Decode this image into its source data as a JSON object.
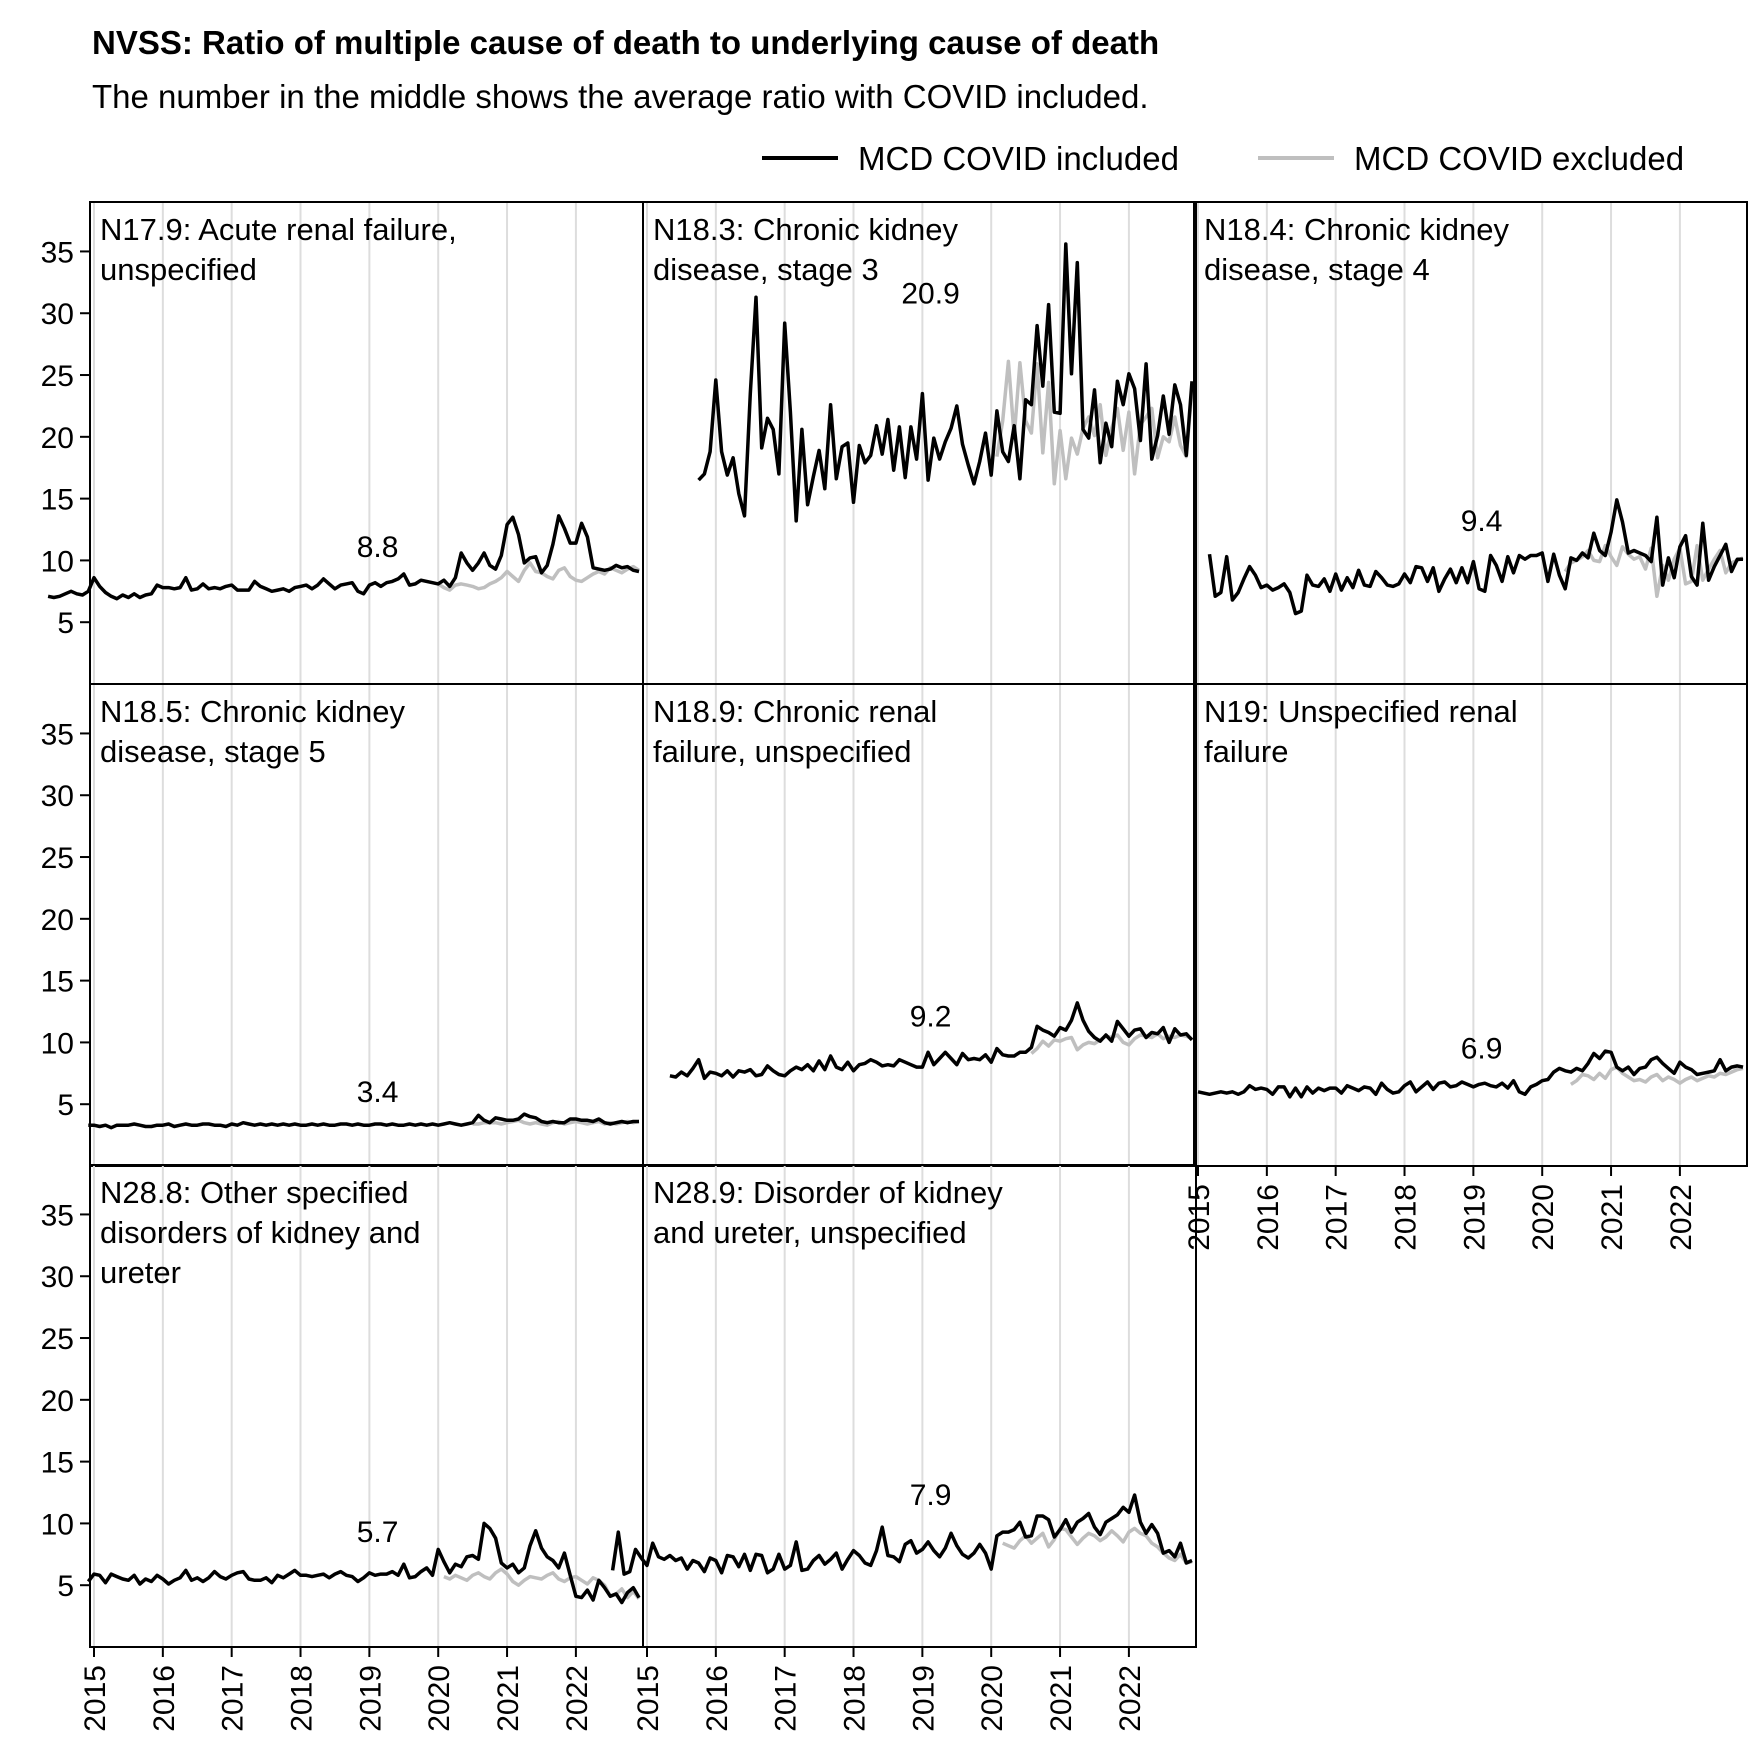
{
  "title": "NVSS: Ratio of multiple cause of death to underlying cause of death",
  "subtitle": "The number in the middle shows the average ratio with COVID included.",
  "colors": {
    "included": "#000000",
    "excluded": "#bfbfbf",
    "grid": "#dddddd",
    "frame": "#000000"
  },
  "chart_data": {
    "type": "line",
    "facets": "3x3 grid, shared axes; x axis monthly from 2015-01 to 2022-12",
    "legend": {
      "position": "top-right",
      "entries": [
        {
          "label": "MCD COVID included",
          "color": "#000000"
        },
        {
          "label": "MCD COVID excluded",
          "color": "#bfbfbf"
        }
      ]
    },
    "x_ticks": [
      "2015",
      "2016",
      "2017",
      "2018",
      "2019",
      "2020",
      "2021",
      "2022"
    ],
    "y_ticks": [
      5,
      10,
      15,
      20,
      25,
      30,
      35
    ],
    "ylim": [
      0,
      39
    ],
    "xlim": [
      "2015-01",
      "2022-12"
    ],
    "grid": "vertical lines at each year",
    "panels": [
      {
        "label": "N17.9: Acute renal failure, unspecified",
        "avg_label": "8.8",
        "included": [
          7.1,
          7.0,
          7.1,
          7.3,
          7.5,
          7.3,
          7.2,
          7.5,
          8.6,
          7.9,
          7.4,
          7.1,
          6.9,
          7.2,
          7.0,
          7.3,
          7.0,
          7.2,
          7.3,
          8.0,
          7.8,
          7.8,
          7.7,
          7.8,
          8.6,
          7.6,
          7.7,
          8.1,
          7.7,
          7.8,
          7.7,
          7.9,
          8.0,
          7.6,
          7.6,
          7.6,
          8.3,
          7.9,
          7.7,
          7.5,
          7.6,
          7.7,
          7.5,
          7.8,
          7.9,
          8.0,
          7.7,
          8.0,
          8.5,
          8.1,
          7.7,
          8.0,
          8.1,
          8.2,
          7.5,
          7.3,
          8.0,
          8.2,
          7.9,
          8.2,
          8.3,
          8.5,
          8.9,
          8.0,
          8.1,
          8.4,
          8.3,
          8.2,
          8.1,
          8.4,
          7.9,
          8.6,
          10.6,
          9.8,
          9.2,
          9.8,
          10.6,
          9.6,
          9.3,
          10.4,
          12.9,
          13.5,
          12.1,
          9.8,
          10.2,
          10.3,
          9.0,
          9.6,
          11.3,
          13.6,
          12.6,
          11.4,
          11.4,
          13.0,
          11.9,
          9.4,
          9.3,
          9.2,
          9.3,
          9.6,
          9.4,
          9.5,
          9.2,
          9.1
        ],
        "excluded": [
          8.1,
          7.8,
          7.6,
          8.0,
          8.1,
          8.0,
          7.9,
          7.7,
          7.8,
          8.1,
          8.3,
          8.6,
          9.1,
          8.7,
          8.3,
          9.2,
          9.8,
          9.1,
          9.0,
          8.7,
          8.5,
          9.2,
          9.4,
          8.7,
          8.4,
          8.3,
          8.6,
          8.9,
          9.1,
          8.9,
          9.4,
          9.2,
          9.0,
          9.3,
          9.5,
          9.2
        ]
      },
      {
        "label": "N18.3: Chronic kidney disease, stage 3",
        "avg_label": "20.9",
        "included": [
          16.5,
          17.0,
          18.8,
          24.6,
          18.8,
          16.9,
          18.3,
          15.4,
          13.6,
          23.5,
          31.3,
          19.1,
          21.5,
          20.6,
          17.0,
          29.2,
          22.0,
          13.2,
          20.6,
          14.5,
          16.8,
          18.9,
          15.8,
          22.6,
          16.6,
          19.2,
          19.5,
          14.7,
          19.3,
          17.9,
          18.5,
          20.9,
          18.6,
          21.4,
          17.3,
          20.8,
          16.7,
          20.8,
          18.2,
          23.5,
          16.5,
          19.9,
          18.2,
          19.6,
          20.7,
          22.5,
          19.4,
          17.7,
          16.2,
          18.0,
          20.3,
          16.9,
          22.1,
          18.8,
          18.0,
          20.9,
          16.6,
          23.0,
          22.6,
          29.0,
          24.1,
          30.7,
          22.0,
          21.9,
          35.6,
          25.1,
          34.1,
          20.6,
          19.9,
          23.8,
          17.9,
          21.1,
          19.2,
          24.5,
          22.6,
          25.1,
          23.9,
          19.7,
          25.9,
          18.2,
          20.1,
          23.3,
          20.2,
          24.2,
          22.6,
          18.5,
          24.5
        ],
        "excluded": [
          18.4,
          21.3,
          26.1,
          20.0,
          26.0,
          21.3,
          20.3,
          25.9,
          18.7,
          24.4,
          16.2,
          20.5,
          16.6,
          19.9,
          18.6,
          20.7,
          21.6,
          20.1,
          22.6,
          18.5,
          20.7,
          22.3,
          18.9,
          22.0,
          17.0,
          21.0,
          21.6,
          22.3,
          18.3,
          20.0,
          19.6,
          21.6,
          19.3,
          18.4,
          23.8
        ]
      },
      {
        "label": "N18.4: Chronic kidney disease, stage 4",
        "avg_label": "9.4",
        "included": [
          10.5,
          7.1,
          7.4,
          10.3,
          6.8,
          7.4,
          8.5,
          9.5,
          8.8,
          7.8,
          8.0,
          7.6,
          7.8,
          8.1,
          7.4,
          5.7,
          5.9,
          8.8,
          8.0,
          7.9,
          8.5,
          7.5,
          8.9,
          7.6,
          8.6,
          7.8,
          9.2,
          8.0,
          7.9,
          9.1,
          8.6,
          8.0,
          7.9,
          8.1,
          8.9,
          8.2,
          9.5,
          9.4,
          8.3,
          9.4,
          7.5,
          8.5,
          9.3,
          8.2,
          9.4,
          8.2,
          9.9,
          7.7,
          7.5,
          10.4,
          9.6,
          8.3,
          10.3,
          9.0,
          10.4,
          10.1,
          10.4,
          10.4,
          10.6,
          8.3,
          10.5,
          8.8,
          7.7,
          10.2,
          10.0,
          10.6,
          10.2,
          12.2,
          10.8,
          10.4,
          12.3,
          14.9,
          13.1,
          10.6,
          10.8,
          10.6,
          10.4,
          9.9,
          13.5,
          8.0,
          10.2,
          8.6,
          11.1,
          12.0,
          8.7,
          8.0,
          13.0,
          8.4,
          9.5,
          10.4,
          11.3,
          9.1,
          10.1,
          10.1
        ],
        "excluded": [
          9.1,
          9.8,
          10.0,
          10.3,
          10.8,
          10.0,
          9.9,
          11.2,
          10.3,
          9.6,
          11.1,
          10.5,
          10.1,
          10.3,
          9.3,
          11.0,
          7.1,
          9.6,
          8.4,
          10.1,
          11.0,
          8.1,
          8.3,
          11.2,
          8.4,
          9.3,
          10.1,
          10.8,
          9.0,
          9.8,
          10.0,
          10.2
        ]
      },
      {
        "label": "N18.5: Chronic kidney disease, stage 5",
        "avg_label": "3.4",
        "included": [
          3.3,
          3.3,
          3.2,
          3.3,
          3.1,
          3.3,
          3.3,
          3.3,
          3.4,
          3.3,
          3.2,
          3.2,
          3.3,
          3.3,
          3.4,
          3.2,
          3.3,
          3.4,
          3.3,
          3.3,
          3.4,
          3.4,
          3.3,
          3.3,
          3.2,
          3.4,
          3.3,
          3.5,
          3.4,
          3.3,
          3.4,
          3.3,
          3.4,
          3.3,
          3.4,
          3.3,
          3.4,
          3.3,
          3.3,
          3.4,
          3.3,
          3.4,
          3.3,
          3.3,
          3.4,
          3.4,
          3.3,
          3.4,
          3.3,
          3.3,
          3.4,
          3.4,
          3.3,
          3.4,
          3.3,
          3.3,
          3.4,
          3.3,
          3.4,
          3.3,
          3.4,
          3.3,
          3.4,
          3.5,
          3.4,
          3.3,
          3.4,
          3.5,
          4.1,
          3.7,
          3.5,
          3.9,
          3.8,
          3.7,
          3.7,
          3.8,
          4.2,
          4.0,
          3.9,
          3.6,
          3.5,
          3.6,
          3.5,
          3.5,
          3.8,
          3.8,
          3.7,
          3.7,
          3.6,
          3.8,
          3.5,
          3.4,
          3.5,
          3.6,
          3.5,
          3.6,
          3.6
        ],
        "excluded": [
          3.4,
          3.4,
          3.5,
          3.5,
          3.5,
          3.4,
          3.5,
          3.6,
          3.7,
          3.5,
          3.4,
          3.5,
          3.4,
          3.3,
          3.5,
          3.6,
          3.4,
          3.5,
          3.6,
          3.5,
          3.4,
          3.5,
          3.6,
          3.4,
          3.5,
          3.4,
          3.5,
          3.6,
          3.5,
          3.6
        ]
      },
      {
        "label": "N18.9: Chronic renal failure, unspecified",
        "avg_label": "9.2",
        "included": [
          7.3,
          7.2,
          7.6,
          7.3,
          7.9,
          8.6,
          7.1,
          7.6,
          7.5,
          7.3,
          7.7,
          7.2,
          7.7,
          7.6,
          7.8,
          7.3,
          7.4,
          8.1,
          7.7,
          7.4,
          7.3,
          7.7,
          8.0,
          7.8,
          8.2,
          7.7,
          8.5,
          7.8,
          8.9,
          8.0,
          7.8,
          8.4,
          7.7,
          8.2,
          8.3,
          8.6,
          8.4,
          8.1,
          8.2,
          8.1,
          8.6,
          8.4,
          8.2,
          8.0,
          8.0,
          9.2,
          8.2,
          8.7,
          9.2,
          8.7,
          8.2,
          9.1,
          8.6,
          8.7,
          8.6,
          9.0,
          8.4,
          9.5,
          9.0,
          8.9,
          8.9,
          9.2,
          9.2,
          9.6,
          11.3,
          11.0,
          10.8,
          10.5,
          11.2,
          11.0,
          11.8,
          13.2,
          11.8,
          10.9,
          10.4,
          10.1,
          10.6,
          10.1,
          11.7,
          11.1,
          10.5,
          11.0,
          11.1,
          10.4,
          10.8,
          10.7,
          11.2,
          10.0,
          11.1,
          10.6,
          10.7,
          10.2
        ],
        "excluded": [
          9.1,
          9.5,
          10.1,
          9.7,
          10.2,
          10.1,
          10.3,
          10.4,
          9.4,
          9.8,
          10.0,
          9.9,
          10.2,
          10.5,
          10.4,
          10.6,
          10.0,
          9.8,
          10.3,
          10.6,
          10.5,
          10.4,
          10.7,
          10.3,
          10.5,
          10.4,
          10.6,
          10.5,
          10.3
        ]
      },
      {
        "label": "N19: Unspecified renal failure",
        "avg_label": "6.9",
        "included": [
          6.0,
          5.9,
          5.8,
          5.9,
          6.0,
          5.9,
          6.0,
          5.8,
          6.0,
          6.5,
          6.2,
          6.3,
          6.2,
          5.8,
          6.4,
          6.4,
          5.6,
          6.3,
          5.6,
          6.4,
          5.9,
          6.3,
          6.1,
          6.3,
          6.3,
          5.9,
          6.5,
          6.3,
          6.1,
          6.4,
          6.3,
          5.8,
          6.7,
          6.2,
          5.9,
          6.0,
          6.5,
          6.8,
          6.0,
          6.4,
          6.8,
          6.2,
          6.7,
          6.8,
          6.4,
          6.5,
          6.8,
          6.6,
          6.4,
          6.6,
          6.7,
          6.5,
          6.4,
          6.7,
          6.3,
          6.9,
          6.0,
          5.8,
          6.4,
          6.6,
          6.9,
          7.0,
          7.6,
          7.9,
          7.7,
          7.6,
          7.9,
          7.7,
          8.3,
          9.1,
          8.7,
          9.3,
          9.2,
          8.0,
          7.7,
          8.0,
          7.4,
          7.9,
          8.0,
          8.6,
          8.8,
          8.3,
          7.9,
          7.5,
          8.4,
          8.0,
          7.8,
          7.4,
          7.5,
          7.6,
          7.7,
          8.6,
          7.7,
          8.0,
          8.1,
          8.0
        ],
        "excluded": [
          6.6,
          6.9,
          7.4,
          7.3,
          7.0,
          7.5,
          7.1,
          7.8,
          8.0,
          7.5,
          7.2,
          6.9,
          7.0,
          6.8,
          7.2,
          7.4,
          6.9,
          7.2,
          7.0,
          6.7,
          7.0,
          7.2,
          6.9,
          7.1,
          7.3,
          7.2,
          7.5,
          7.4,
          7.6,
          7.8,
          7.9
        ]
      },
      {
        "label": "N28.8: Other specified disorders of kidney and ureter",
        "avg_label": "5.7",
        "included": [
          5.3,
          5.9,
          5.8,
          5.2,
          5.9,
          5.7,
          5.5,
          5.4,
          5.8,
          5.1,
          5.5,
          5.3,
          5.8,
          5.5,
          5.1,
          5.4,
          5.6,
          6.2,
          5.4,
          5.6,
          5.3,
          5.6,
          6.1,
          5.7,
          5.5,
          5.8,
          6.0,
          6.1,
          5.5,
          5.4,
          5.4,
          5.6,
          5.2,
          5.8,
          5.6,
          5.9,
          6.2,
          5.8,
          5.8,
          5.7,
          5.8,
          5.9,
          5.6,
          5.9,
          6.1,
          5.8,
          5.7,
          5.3,
          5.6,
          6.0,
          5.8,
          5.9,
          5.9,
          6.1,
          5.8,
          6.7,
          5.6,
          5.7,
          6.1,
          6.4,
          5.8,
          7.9,
          6.9,
          6.0,
          6.7,
          6.5,
          7.3,
          7.4,
          7.1,
          10.0,
          9.6,
          8.8,
          6.8,
          6.4,
          6.7,
          6.0,
          6.4,
          8.2,
          9.4,
          8.0,
          7.3,
          7.0,
          6.4,
          7.6,
          5.8,
          4.1,
          4.0,
          4.6,
          3.8,
          5.4,
          4.8,
          4.1,
          4.3,
          3.6,
          4.4,
          4.8,
          4.0
        ],
        "excluded": [
          5.7,
          5.5,
          5.8,
          5.6,
          5.4,
          5.8,
          6.0,
          5.7,
          5.5,
          6.0,
          6.3,
          5.9,
          5.3,
          5.0,
          5.4,
          5.7,
          5.6,
          5.5,
          5.8,
          6.0,
          5.5,
          5.3,
          5.6,
          5.7,
          5.4,
          5.1,
          5.6,
          5.4,
          5.0,
          4.1,
          4.3,
          4.7,
          4.0,
          4.5,
          3.9
        ]
      },
      {
        "label": "N28.9: Disorder of kidney and ureter, unspecified",
        "avg_label": "7.9",
        "included": [
          6.2,
          9.3,
          5.9,
          6.1,
          7.9,
          7.2,
          6.6,
          8.4,
          7.3,
          7.1,
          7.4,
          7.0,
          7.2,
          6.3,
          7.0,
          6.8,
          6.1,
          7.2,
          7.0,
          6.0,
          7.4,
          7.3,
          6.5,
          7.5,
          6.2,
          7.5,
          7.4,
          6.0,
          6.3,
          7.5,
          6.3,
          6.6,
          8.5,
          6.2,
          6.3,
          7.0,
          7.4,
          6.7,
          7.1,
          7.6,
          6.3,
          7.1,
          7.8,
          7.4,
          6.8,
          6.6,
          7.8,
          9.7,
          7.4,
          7.3,
          6.9,
          8.3,
          8.6,
          7.6,
          7.9,
          8.5,
          7.8,
          7.3,
          8.0,
          9.2,
          8.2,
          7.5,
          7.2,
          7.6,
          8.3,
          7.6,
          6.3,
          9.0,
          9.3,
          9.3,
          9.5,
          10.1,
          8.9,
          9.0,
          10.6,
          10.6,
          10.3,
          8.9,
          9.5,
          10.3,
          9.3,
          10.1,
          10.4,
          10.8,
          9.7,
          9.1,
          10.1,
          10.4,
          10.7,
          11.3,
          10.9,
          12.3,
          10.1,
          9.2,
          9.9,
          9.2,
          7.6,
          7.8,
          7.3,
          8.4,
          6.8,
          7.0
        ],
        "excluded": [
          8.4,
          8.2,
          8.0,
          8.6,
          9.0,
          8.4,
          8.8,
          9.2,
          8.1,
          8.7,
          9.6,
          9.5,
          8.9,
          8.3,
          8.8,
          9.2,
          9.0,
          8.6,
          8.9,
          9.4,
          9.0,
          8.5,
          9.3,
          9.6,
          9.2,
          9.0,
          8.4,
          8.1,
          7.6,
          7.2,
          7.0,
          7.5,
          6.8,
          6.9
        ]
      }
    ]
  }
}
